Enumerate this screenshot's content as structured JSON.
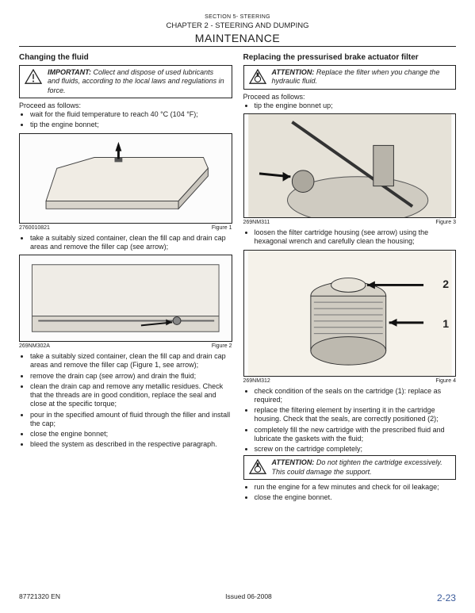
{
  "header": {
    "section": "SECTION 5- STEERING",
    "chapter": "CHAPTER 2 - STEERING AND DUMPING",
    "title": "MAINTENANCE"
  },
  "left": {
    "heading": "Changing the fluid",
    "notice": {
      "lead": "IMPORTANT:",
      "text": "Collect and dispose of used lubricants and fluids, according to the local laws and regulations in force."
    },
    "proceed": "Proceed as follows:",
    "pre_fig1": [
      "wait for the fluid temperature to reach 40 °C (104 °F);",
      "tip the engine bonnet;"
    ],
    "fig1": {
      "code": "2760010821",
      "cap": "Figure 1"
    },
    "between12": [
      "take a suitably sized container, clean the fill cap and drain cap areas and remove the filler cap (see arrow);"
    ],
    "fig2": {
      "code": "269NM302A",
      "cap": "Figure 2"
    },
    "after2": [
      "take a suitably sized container, clean the fill cap and drain cap areas and remove the filler cap (Figure 1, see arrow);",
      "remove the drain cap (see arrow) and drain the fluid;",
      "clean the drain cap and remove any metallic residues. Check that the threads are in good condition, replace the seal and close at the specific torque;",
      "pour in the specified amount of fluid through the filler and install the cap;",
      "close the engine bonnet;",
      "bleed the system as described in the respective paragraph."
    ]
  },
  "right": {
    "heading": "Replacing the pressurised brake actuator filter",
    "notice1": {
      "lead": "ATTENTION:",
      "text": "Replace the filter when you change the hydraulic fluid."
    },
    "proceed": "Proceed as follows:",
    "pre_fig3": [
      "tip the engine bonnet up;"
    ],
    "fig3": {
      "code": "269NM311",
      "cap": "Figure 3"
    },
    "between34": [
      "loosen the filter cartridge housing (see arrow) using the hexagonal wrench and carefully clean the housing;"
    ],
    "fig4": {
      "code": "269NM312",
      "cap": "Figure 4",
      "label1": "1",
      "label2": "2"
    },
    "after4": [
      "check condition of the seals on the cartridge (1): replace as required;",
      "replace the filtering element by inserting it in the cartridge housing. Check that the seals, are correctly positioned (2);",
      "completely fill the new cartridge with the prescribed fluid and lubricate the gaskets with the fluid;",
      "screw on the cartridge completely;"
    ],
    "notice2": {
      "lead": "ATTENTION:",
      "text": "Do not tighten the cartridge excessively. This could damage the support."
    },
    "after_notice2": [
      "run the engine for a few minutes and check for oil leakage;",
      "close the engine bonnet."
    ]
  },
  "footer": {
    "left": "87721320 EN",
    "mid": "Issued 06-2008",
    "page": "2-23"
  },
  "colors": {
    "border": "#222222",
    "text": "#222222",
    "pageno": "#3a5a9a",
    "figbg": "#e8e4dc"
  }
}
